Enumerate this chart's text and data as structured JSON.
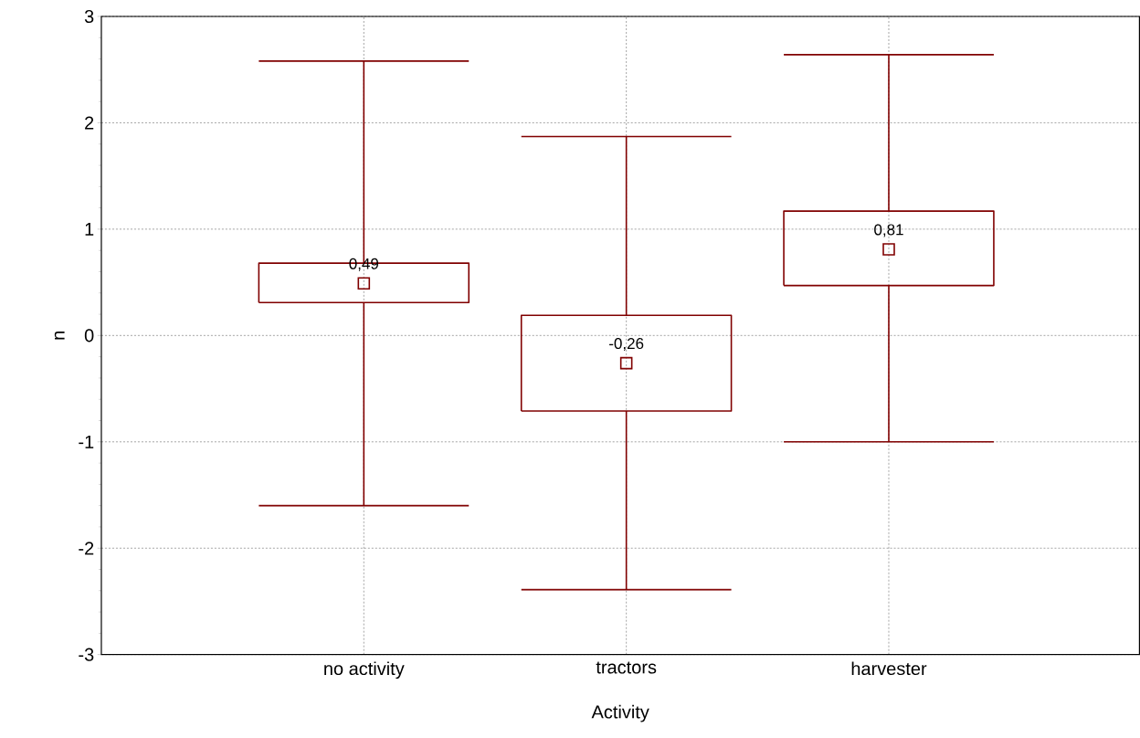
{
  "chart_data": {
    "type": "box",
    "xlabel": "Activity",
    "ylabel": "n",
    "categories": [
      "no activity",
      "tractors",
      "harvester"
    ],
    "boxes": [
      {
        "low": -1.6,
        "q1": 0.31,
        "median": 0.49,
        "q3": 0.68,
        "high": 2.58
      },
      {
        "low": -2.39,
        "q1": -0.71,
        "median": -0.26,
        "q3": 0.19,
        "high": 1.87
      },
      {
        "low": -1.0,
        "q1": 0.47,
        "median": 0.81,
        "q3": 1.17,
        "high": 2.64
      }
    ],
    "value_labels": [
      "0,49",
      "-0,26",
      "0,81"
    ],
    "color": "#800000",
    "marker": "square",
    "grid": true,
    "ylim": [
      -3,
      3
    ],
    "yticks": [
      -3,
      -2,
      -1,
      0,
      1,
      2,
      3
    ]
  }
}
